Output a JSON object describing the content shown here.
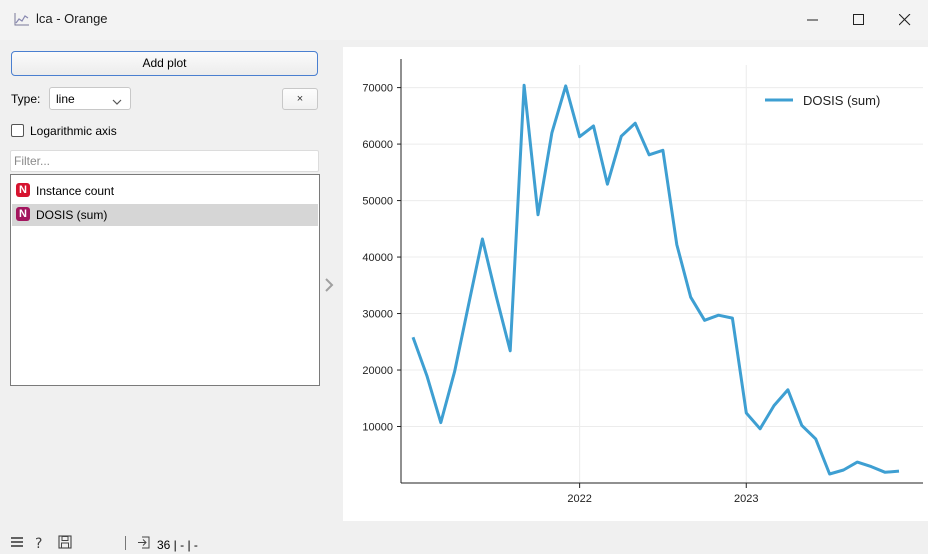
{
  "window": {
    "title": "lca - Orange"
  },
  "controls": {
    "add_plot_label": "Add plot",
    "type_label": "Type:",
    "type_value": "line",
    "remove_label": "×",
    "log_axis_label": "Logarithmic axis",
    "log_axis_checked": false,
    "filter_placeholder": "Filter..."
  },
  "variables": [
    {
      "badge": "N",
      "label": "Instance count",
      "color": "#d6132f",
      "selected": false
    },
    {
      "badge": "N",
      "label": "DOSIS (sum)",
      "color": "#a3155e",
      "selected": true
    }
  ],
  "statusbar": {
    "io_text": "36 | - | -"
  },
  "chart_data": {
    "type": "line",
    "series": [
      {
        "name": "DOSIS (sum)",
        "color": "#3e9fd2",
        "x": [
          "2021-01",
          "2021-02",
          "2021-03",
          "2021-04",
          "2021-05",
          "2021-06",
          "2021-07",
          "2021-08",
          "2021-09",
          "2021-10",
          "2021-11",
          "2021-12",
          "2022-01",
          "2022-02",
          "2022-03",
          "2022-04",
          "2022-05",
          "2022-06",
          "2022-07",
          "2022-08",
          "2022-09",
          "2022-10",
          "2022-11",
          "2022-12",
          "2023-01",
          "2023-02",
          "2023-03",
          "2023-04",
          "2023-05",
          "2023-06",
          "2023-07",
          "2023-08",
          "2023-09",
          "2023-10",
          "2023-11",
          "2023-12"
        ],
        "values": [
          25800,
          19000,
          10700,
          19800,
          31500,
          43200,
          33000,
          23400,
          70400,
          47500,
          62000,
          70300,
          61300,
          63200,
          52900,
          61400,
          63700,
          58100,
          58900,
          42200,
          32900,
          28800,
          29700,
          29200,
          12400,
          9600,
          13700,
          16500,
          10200,
          7800,
          1600,
          2300,
          3700,
          2900,
          1900,
          2100
        ]
      }
    ],
    "x_ticks": [
      "2022",
      "2023"
    ],
    "y_ticks": [
      10000,
      20000,
      30000,
      40000,
      50000,
      60000,
      70000
    ],
    "ylim": [
      0,
      74000
    ],
    "legend_position": "top-right",
    "grid": true
  }
}
